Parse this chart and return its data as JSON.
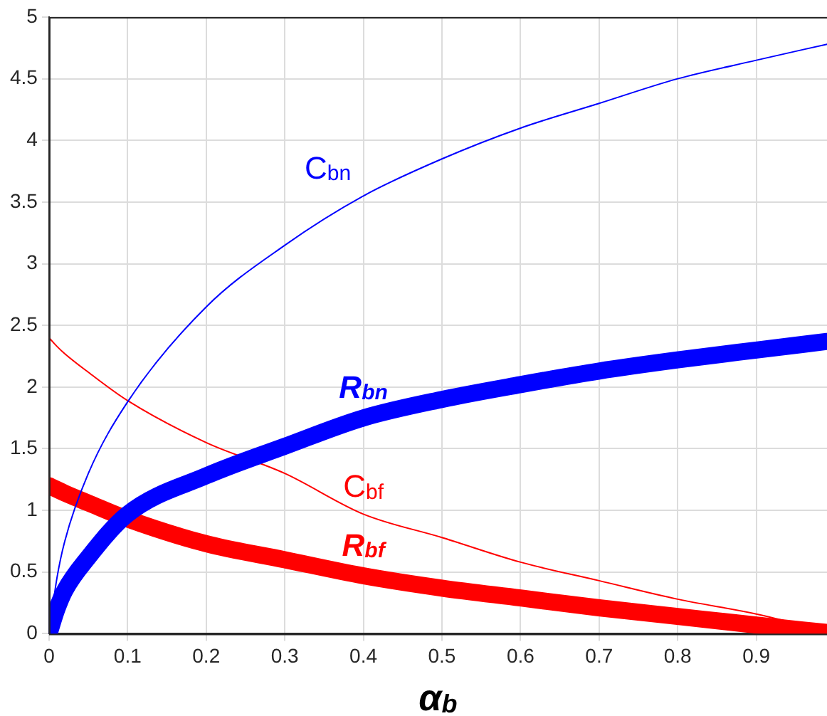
{
  "chart_data": {
    "type": "line",
    "xlabel": "α$_{b}$",
    "x": [
      0,
      0.01,
      0.02,
      0.05,
      0.1,
      0.2,
      0.3,
      0.4,
      0.5,
      0.6,
      0.7,
      0.8,
      0.9,
      0.99
    ],
    "series": [
      {
        "name": "C$_{bn}$",
        "color": "#0000ff",
        "values": [
          0,
          0.45,
          0.75,
          1.3,
          1.88,
          2.65,
          3.15,
          3.55,
          3.85,
          4.1,
          4.3,
          4.5,
          4.65,
          4.78
        ]
      },
      {
        "name": "R$_{bn}$",
        "color": "#0000ff",
        "values": [
          0,
          0.2,
          0.35,
          0.62,
          0.97,
          1.28,
          1.52,
          1.75,
          1.9,
          2.02,
          2.13,
          2.22,
          2.3,
          2.37
        ]
      },
      {
        "name": "C$_{bf}$",
        "color": "#ff0000",
        "values": [
          2.4,
          2.33,
          2.27,
          2.12,
          1.89,
          1.55,
          1.3,
          0.97,
          0.78,
          0.58,
          0.43,
          0.28,
          0.16,
          0.02
        ]
      },
      {
        "name": "R$_{bf}$",
        "color": "#ff0000",
        "values": [
          1.2,
          1.17,
          1.14,
          1.06,
          0.93,
          0.73,
          0.6,
          0.47,
          0.37,
          0.29,
          0.21,
          0.14,
          0.07,
          0.01
        ]
      }
    ],
    "xlim": [
      0,
      0.99
    ],
    "xticks": [
      0,
      0.1,
      0.2,
      0.3,
      0.4,
      0.5,
      0.6,
      0.7,
      0.8,
      0.9
    ],
    "ylim": [
      0,
      5
    ],
    "yticks": [
      0,
      0.5,
      1,
      1.5,
      2,
      2.5,
      3,
      3.5,
      4,
      4.5,
      5
    ],
    "grid": true,
    "legend": false,
    "marker": "none",
    "line_style": "solid"
  }
}
